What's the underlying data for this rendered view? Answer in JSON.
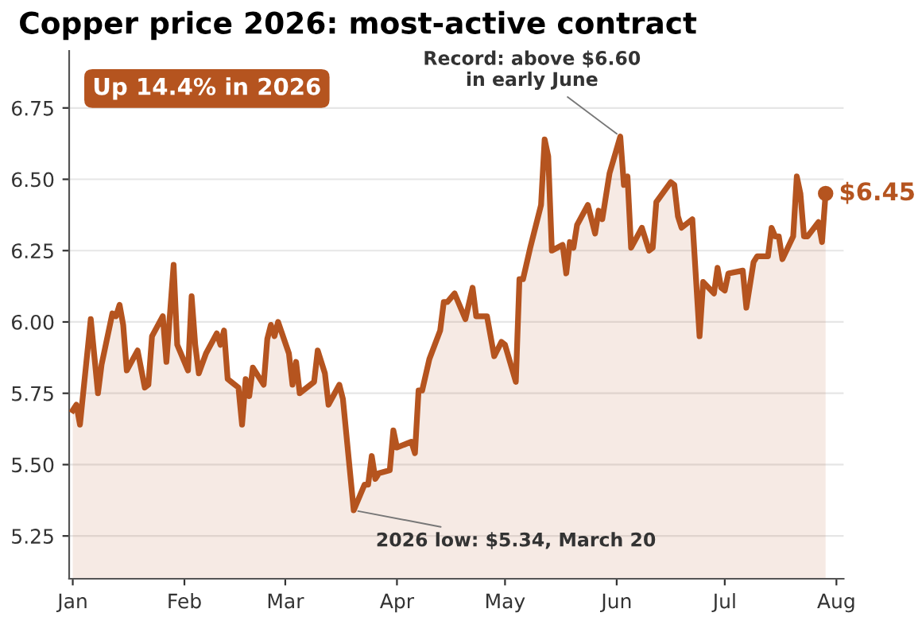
{
  "chart_data": {
    "type": "area",
    "title": "Copper price 2026: most-active contract",
    "x": [
      "2026-01-01",
      "2026-01-02",
      "2026-01-03",
      "2026-01-06",
      "2026-01-08",
      "2026-01-09",
      "2026-01-12",
      "2026-01-13",
      "2026-01-14",
      "2026-01-15",
      "2026-01-16",
      "2026-01-19",
      "2026-01-21",
      "2026-01-22",
      "2026-01-23",
      "2026-01-26",
      "2026-01-27",
      "2026-01-29",
      "2026-01-30",
      "2026-02-02",
      "2026-02-03",
      "2026-02-04",
      "2026-02-05",
      "2026-02-07",
      "2026-02-10",
      "2026-02-11",
      "2026-02-12",
      "2026-02-13",
      "2026-02-14",
      "2026-02-16",
      "2026-02-17",
      "2026-02-18",
      "2026-02-19",
      "2026-02-20",
      "2026-02-23",
      "2026-02-24",
      "2026-02-25",
      "2026-02-26",
      "2026-02-27",
      "2026-03-02",
      "2026-03-03",
      "2026-03-04",
      "2026-03-05",
      "2026-03-09",
      "2026-03-10",
      "2026-03-12",
      "2026-03-13",
      "2026-03-16",
      "2026-03-17",
      "2026-03-20",
      "2026-03-23",
      "2026-03-24",
      "2026-03-25",
      "2026-03-26",
      "2026-03-27",
      "2026-03-30",
      "2026-03-31",
      "2026-04-01",
      "2026-04-05",
      "2026-04-06",
      "2026-04-07",
      "2026-04-08",
      "2026-04-10",
      "2026-04-13",
      "2026-04-14",
      "2026-04-15",
      "2026-04-17",
      "2026-04-20",
      "2026-04-22",
      "2026-04-23",
      "2026-04-26",
      "2026-04-28",
      "2026-04-30",
      "2026-05-01",
      "2026-05-04",
      "2026-05-05",
      "2026-05-06",
      "2026-05-08",
      "2026-05-11",
      "2026-05-12",
      "2026-05-13",
      "2026-05-14",
      "2026-05-17",
      "2026-05-18",
      "2026-05-19",
      "2026-05-20",
      "2026-05-21",
      "2026-05-24",
      "2026-05-26",
      "2026-05-27",
      "2026-05-28",
      "2026-05-30",
      "2026-06-02",
      "2026-06-03",
      "2026-06-04",
      "2026-06-05",
      "2026-06-08",
      "2026-06-10",
      "2026-06-11",
      "2026-06-12",
      "2026-06-16",
      "2026-06-17",
      "2026-06-18",
      "2026-06-19",
      "2026-06-22",
      "2026-06-24",
      "2026-06-25",
      "2026-06-28",
      "2026-06-29",
      "2026-06-30",
      "2026-07-01",
      "2026-07-02",
      "2026-07-06",
      "2026-07-07",
      "2026-07-09",
      "2026-07-10",
      "2026-07-13",
      "2026-07-14",
      "2026-07-15",
      "2026-07-16",
      "2026-07-17",
      "2026-07-20",
      "2026-07-21",
      "2026-07-22",
      "2026-07-23",
      "2026-07-24",
      "2026-07-27",
      "2026-07-28",
      "2026-07-29"
    ],
    "series": [
      {
        "color": "#b5541f",
        "values": [
          5.69,
          5.71,
          5.64,
          6.01,
          5.75,
          5.85,
          6.03,
          6.02,
          6.06,
          5.99,
          5.83,
          5.9,
          5.77,
          5.78,
          5.95,
          6.02,
          5.86,
          6.2,
          5.92,
          5.83,
          6.09,
          5.92,
          5.82,
          5.89,
          5.96,
          5.92,
          5.97,
          5.8,
          5.79,
          5.77,
          5.64,
          5.8,
          5.74,
          5.84,
          5.78,
          5.94,
          5.99,
          5.95,
          6.0,
          5.89,
          5.78,
          5.86,
          5.75,
          5.79,
          5.9,
          5.82,
          5.71,
          5.78,
          5.73,
          5.34,
          5.43,
          5.43,
          5.53,
          5.45,
          5.47,
          5.48,
          5.62,
          5.56,
          5.58,
          5.54,
          5.76,
          5.76,
          5.87,
          5.97,
          6.07,
          6.07,
          6.1,
          6.01,
          6.12,
          6.02,
          6.02,
          5.88,
          5.93,
          5.92,
          5.79,
          6.15,
          6.15,
          6.26,
          6.41,
          6.64,
          6.58,
          6.25,
          6.27,
          6.17,
          6.28,
          6.26,
          6.34,
          6.41,
          6.31,
          6.39,
          6.36,
          6.52,
          6.65,
          6.48,
          6.51,
          6.26,
          6.33,
          6.25,
          6.26,
          6.42,
          6.49,
          6.48,
          6.37,
          6.33,
          6.36,
          5.95,
          6.14,
          6.1,
          6.19,
          6.12,
          6.11,
          6.17,
          6.18,
          6.05,
          6.21,
          6.23,
          6.23,
          6.33,
          6.3,
          6.3,
          6.22,
          6.3,
          6.51,
          6.45,
          6.3,
          6.3,
          6.35,
          6.28,
          6.45
        ]
      }
    ],
    "xlim": [
      "2025-12-31",
      "2026-08-03"
    ],
    "xticks": [
      {
        "value": "2026-01-01",
        "label": "Jan"
      },
      {
        "value": "2026-02-01",
        "label": "Feb"
      },
      {
        "value": "2026-03-01",
        "label": "Mar"
      },
      {
        "value": "2026-04-01",
        "label": "Apr"
      },
      {
        "value": "2026-05-01",
        "label": "May"
      },
      {
        "value": "2026-06-01",
        "label": "Jun"
      },
      {
        "value": "2026-07-01",
        "label": "Jul"
      },
      {
        "value": "2026-08-01",
        "label": "Aug"
      }
    ],
    "ylim": [
      5.1,
      6.95
    ],
    "yticks": [
      5.25,
      {
        "value": 5.5,
        "label": "5.50"
      },
      5.75,
      {
        "value": 6.0,
        "label": "6.00"
      },
      6.25,
      {
        "value": 6.5,
        "label": "6.50"
      },
      6.75
    ],
    "grid": "y",
    "marker": "none",
    "line_style": "solid",
    "annotations": [
      "Up 14.4% in 2026",
      {
        "text": "Record: above $6.60\nin early June",
        "x": "2026-06-02",
        "y": 6.65
      },
      {
        "text": "2026 low: $5.34, March 20",
        "x": "2026-03-20",
        "y": 5.34
      },
      {
        "text": "$6.45",
        "x": "2026-07-29",
        "y": 6.45
      }
    ]
  }
}
